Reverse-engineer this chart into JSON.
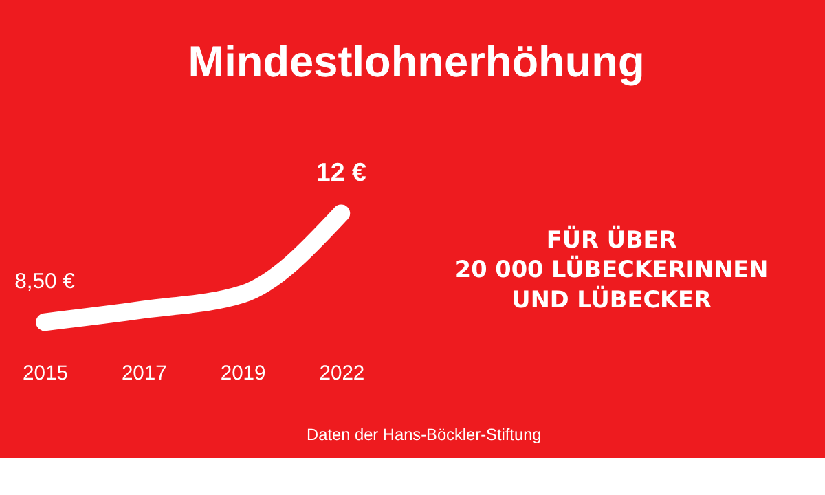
{
  "chart_data": {
    "type": "line",
    "title": "Mindestlohnerhöhung",
    "categories": [
      "2015",
      "2017",
      "2019",
      "2022"
    ],
    "series": [
      {
        "color": "#ffffff",
        "values": [
          8.5,
          8.9,
          9.4,
          12
        ],
        "value_labels": [
          "8,50 €",
          null,
          null,
          "12 €"
        ]
      }
    ],
    "line_style": "solid",
    "grid": false,
    "annotations": [
      "FÜR ÜBER\n20 000 LÜBECKERINNEN\nUND LÜBECKER",
      "Daten der Hans-Böckler-Stiftung"
    ]
  }
}
